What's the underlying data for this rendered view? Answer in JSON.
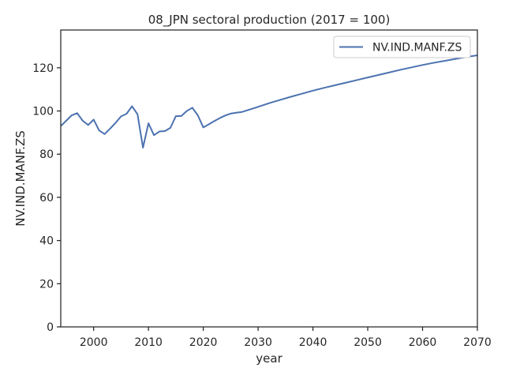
{
  "chart_data": {
    "type": "line",
    "title": "08_JPN sectoral production (2017 = 100)",
    "xlabel": "year",
    "ylabel": "NV.IND.MANF.ZS",
    "xlim": [
      1994,
      2070
    ],
    "ylim": [
      0,
      137.5
    ],
    "xticks": [
      2000,
      2010,
      2020,
      2030,
      2040,
      2050,
      2060,
      2070
    ],
    "yticks": [
      0,
      20,
      40,
      60,
      80,
      100,
      120
    ],
    "grid": false,
    "legend_position": "top-right",
    "line_color": "#4c72b0",
    "series": [
      {
        "name": "NV.IND.MANF.ZS",
        "x": [
          1994,
          1995,
          1996,
          1997,
          1998,
          1999,
          2000,
          2001,
          2002,
          2003,
          2004,
          2005,
          2006,
          2007,
          2008,
          2009,
          2010,
          2011,
          2012,
          2013,
          2014,
          2015,
          2016,
          2017,
          2018,
          2019,
          2020,
          2021,
          2022,
          2023,
          2024,
          2025,
          2026,
          2027,
          2028,
          2029,
          2030,
          2032,
          2034,
          2036,
          2038,
          2040,
          2042,
          2044,
          2046,
          2048,
          2050,
          2052,
          2054,
          2056,
          2058,
          2060,
          2062,
          2064,
          2066,
          2068,
          2070
        ],
        "values": [
          93,
          95.5,
          98,
          99,
          95.5,
          93.5,
          96,
          91,
          89.3,
          91.8,
          94.5,
          97.5,
          98.7,
          102.2,
          98.5,
          83,
          94.3,
          88.8,
          90.5,
          90.7,
          92.2,
          97.6,
          97.7,
          100,
          101.5,
          98,
          92.4,
          93.8,
          95.3,
          96.7,
          97.9,
          98.8,
          99.2,
          99.5,
          100.3,
          101.1,
          101.9,
          103.6,
          105.1,
          106.6,
          108,
          109.4,
          110.7,
          111.9,
          113.1,
          114.3,
          115.5,
          116.7,
          117.9,
          119.1,
          120.2,
          121.3,
          122.3,
          123.2,
          124.1,
          125,
          125.8
        ]
      }
    ]
  }
}
